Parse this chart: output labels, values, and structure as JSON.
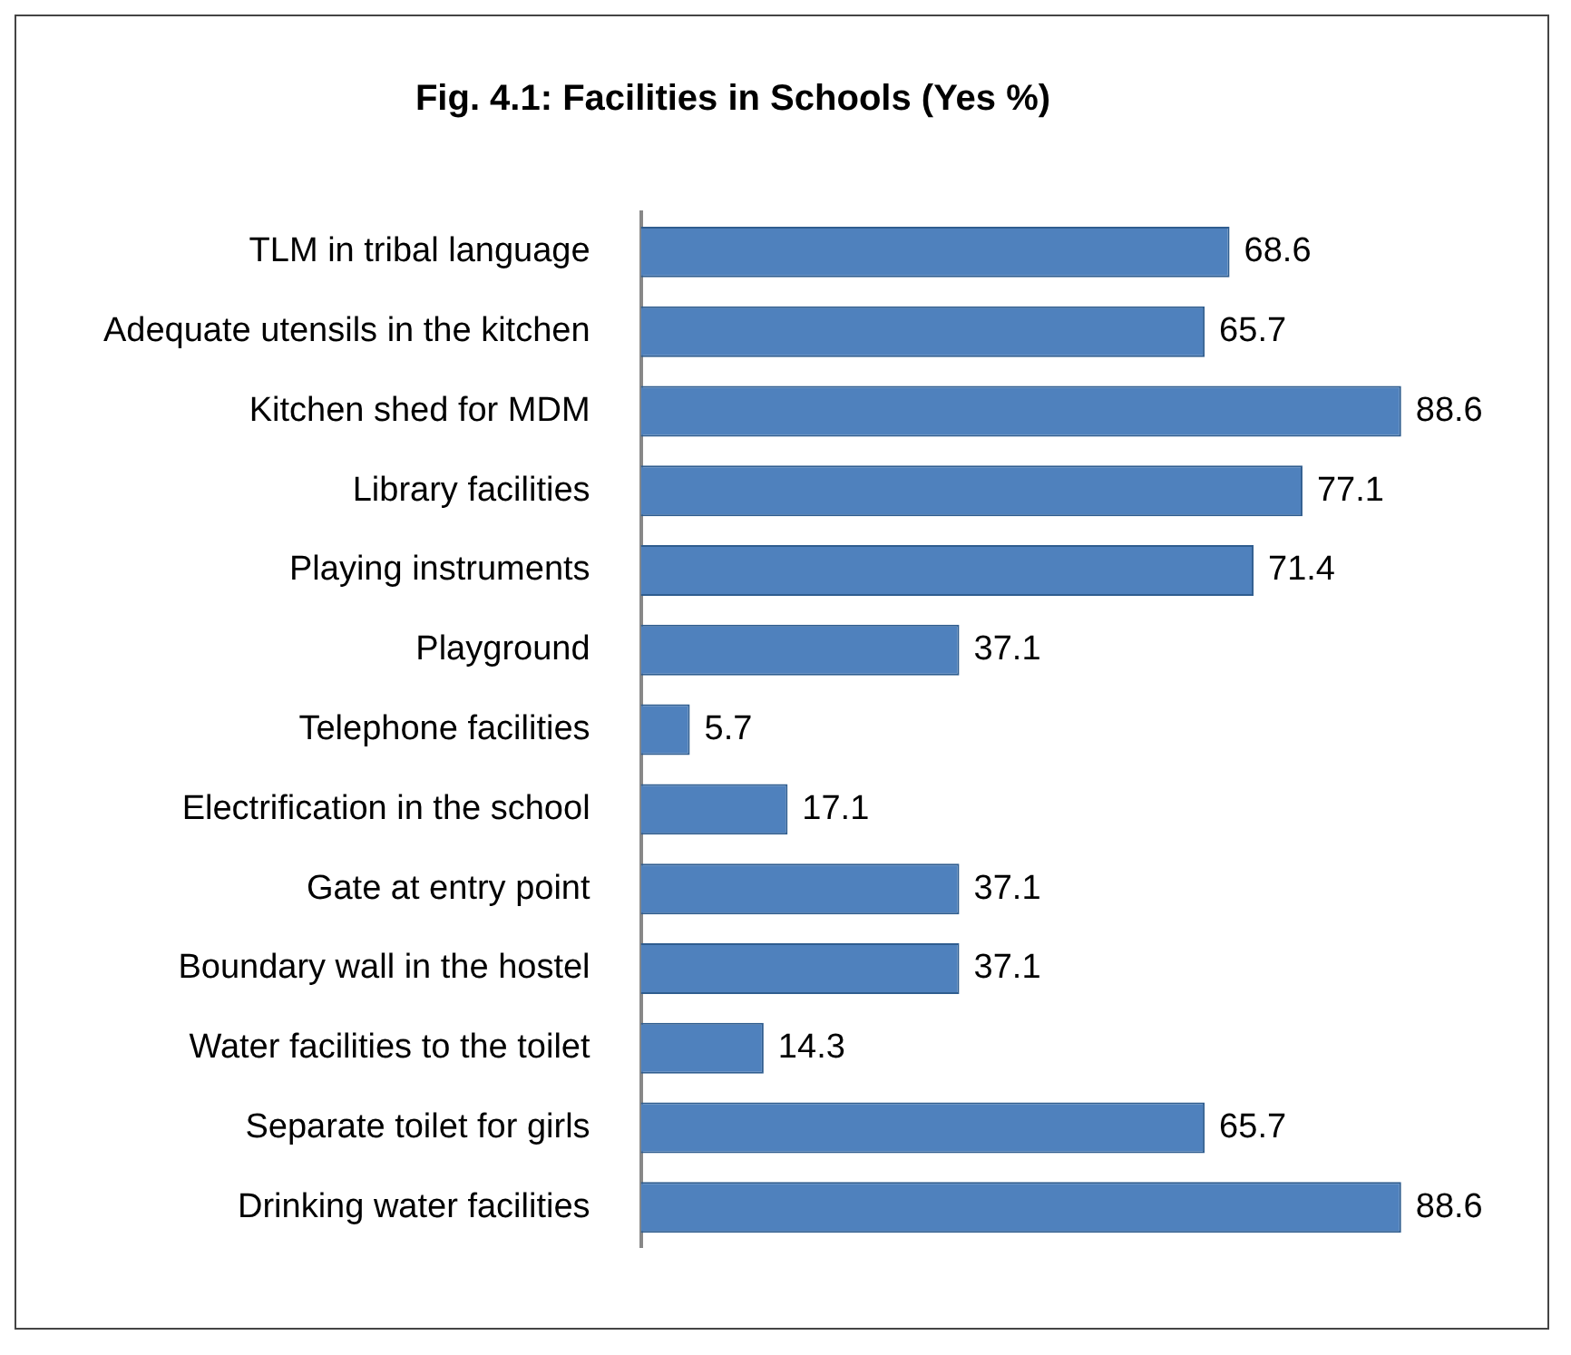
{
  "chart_data": {
    "type": "bar",
    "orientation": "horizontal",
    "title": "Fig. 4.1: Facilities in Schools (Yes %)",
    "categories": [
      "TLM in tribal language",
      "Adequate utensils in the kitchen",
      "Kitchen shed for MDM",
      "Library facilities",
      "Playing instruments",
      "Playground",
      "Telephone facilities",
      "Electrification in the school",
      "Gate at entry point",
      "Boundary wall in the hostel",
      "Water facilities to the toilet",
      "Separate toilet for girls",
      "Drinking water facilities"
    ],
    "values": [
      68.6,
      65.7,
      88.6,
      77.1,
      71.4,
      37.1,
      5.7,
      17.1,
      37.1,
      37.1,
      14.3,
      65.7,
      88.6
    ],
    "color": "#4f81bd",
    "data_labels": true,
    "grid": false,
    "legend": false
  }
}
